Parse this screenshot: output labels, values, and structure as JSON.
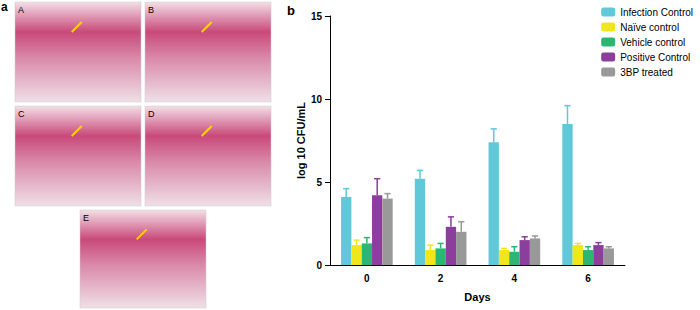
{
  "image_panel": {
    "label": "a",
    "images": [
      "A",
      "B",
      "C",
      "D",
      "E"
    ]
  },
  "chart_panel_label": "b",
  "chart_data": {
    "type": "bar",
    "x_label": "Days",
    "y_label": "log 10 CFU/mL",
    "categories": [
      "0",
      "2",
      "4",
      "6"
    ],
    "series": [
      {
        "name": "Infection Control",
        "color": "#5fc9d9",
        "values": [
          4.1,
          5.2,
          7.4,
          8.5
        ],
        "errors": [
          0.5,
          0.5,
          0.8,
          1.1
        ]
      },
      {
        "name": "Naïve control",
        "color": "#f0e61c",
        "values": [
          1.2,
          0.9,
          0.9,
          1.2
        ],
        "errors": [
          0.3,
          0.3,
          0.1,
          0.1
        ]
      },
      {
        "name": "Vehicle control",
        "color": "#2db673",
        "values": [
          1.3,
          1.0,
          0.8,
          0.9
        ],
        "errors": [
          0.35,
          0.3,
          0.3,
          0.2
        ]
      },
      {
        "name": "Positive Control",
        "color": "#8b3e9c",
        "values": [
          4.2,
          2.3,
          1.5,
          1.2
        ],
        "errors": [
          1.0,
          0.6,
          0.2,
          0.15
        ]
      },
      {
        "name": "3BP treated",
        "color": "#999999",
        "values": [
          4.0,
          2.0,
          1.6,
          1.0
        ],
        "errors": [
          0.3,
          0.6,
          0.15,
          0.1
        ]
      }
    ],
    "ylim": [
      0,
      15
    ],
    "yticks": [
      0,
      5,
      10,
      15
    ],
    "grid": false,
    "legend": "top-right"
  }
}
